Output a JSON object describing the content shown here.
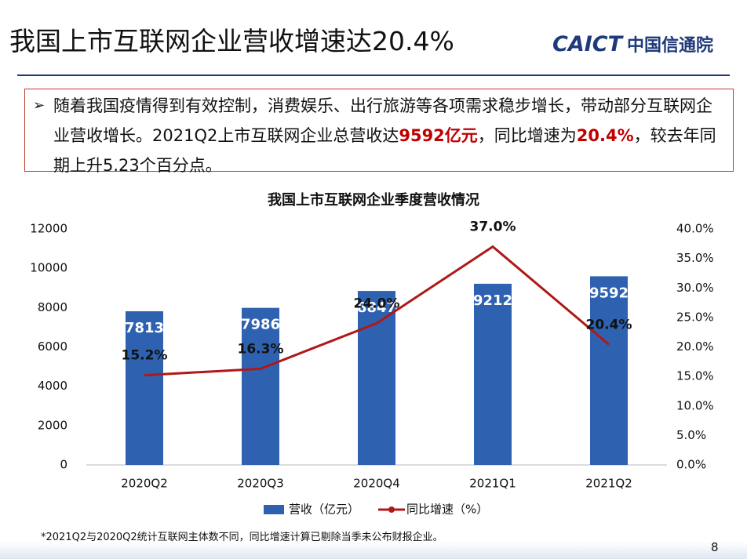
{
  "header": {
    "title": "我国上市互联网企业营收增速达20.4%",
    "logo_en": "CAICT",
    "logo_cn": "中国信通院"
  },
  "summary": {
    "parts": [
      "随着我国疫情得到有效控制，消费娱乐、出行旅游等各项需求稳步增长，带动部分互联网企业营收增长。2021Q2上市互联网企业总营收达",
      "9592亿元",
      "，同比增速为",
      "20.4%",
      "，较去年同期上升5.23个百分点。"
    ]
  },
  "chart_data": {
    "type": "bar",
    "title": "我国上市互联网企业季度营收情况",
    "categories": [
      "2020Q2",
      "2020Q3",
      "2020Q4",
      "2021Q1",
      "2021Q2"
    ],
    "series": [
      {
        "name": "营收（亿元）",
        "color": "#2e62b0",
        "values": [
          7813,
          7986,
          8847,
          9212,
          9592
        ]
      },
      {
        "name": "同比增速（%）",
        "color": "#b01818",
        "type": "line",
        "axis": "y2",
        "values": [
          15.2,
          16.3,
          24.0,
          37.0,
          20.4
        ],
        "value_labels": [
          "15.2%",
          "16.3%",
          "24.0%",
          "37.0%",
          "20.4%"
        ]
      }
    ],
    "ylim": [
      0,
      12000
    ],
    "yticks": [
      0,
      2000,
      4000,
      6000,
      8000,
      10000,
      12000
    ],
    "y2lim": [
      0,
      40
    ],
    "y2ticks": [
      {
        "value": 0,
        "label": "0.0%"
      },
      {
        "value": 5,
        "label": "5.0%"
      },
      {
        "value": 10,
        "label": "10.0%"
      },
      {
        "value": 15,
        "label": "15.0%"
      },
      {
        "value": 20,
        "label": "20.0%"
      },
      {
        "value": 25,
        "label": "25.0%"
      },
      {
        "value": 30,
        "label": "30.0%"
      },
      {
        "value": 35,
        "label": "35.0%"
      },
      {
        "value": 40,
        "label": "40.0%"
      }
    ],
    "legend": "bottom"
  },
  "footnote": "*2021Q2与2020Q2统计互联网主体数不同，同比增速计算已剔除当季未公布财报企业。",
  "page_number": "8"
}
